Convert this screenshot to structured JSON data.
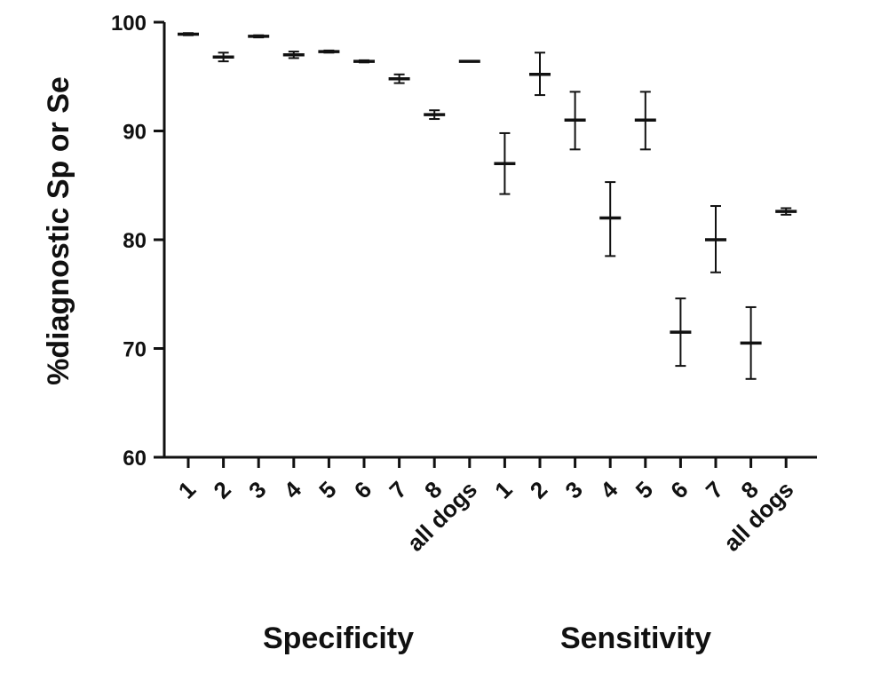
{
  "chart_data": {
    "type": "scatter",
    "title": "",
    "ylabel": "%diagnostic Sp or Se",
    "xlabel": "",
    "ylim": [
      60,
      100
    ],
    "yticks": [
      60,
      70,
      80,
      90,
      100
    ],
    "grid": false,
    "categories": [
      "1",
      "2",
      "3",
      "4",
      "5",
      "6",
      "7",
      "8",
      "all dogs",
      "1",
      "2",
      "3",
      "4",
      "5",
      "6",
      "7",
      "8",
      "all dogs"
    ],
    "groups": [
      {
        "name": "Specificity",
        "start": 0,
        "end": 8
      },
      {
        "name": "Sensitivity",
        "start": 9,
        "end": 17
      }
    ],
    "series": [
      {
        "name": "Specificity",
        "values": [
          98.9,
          96.8,
          98.7,
          97.0,
          97.3,
          96.4,
          94.8,
          91.5,
          96.4
        ],
        "lower": [
          98.8,
          96.4,
          98.6,
          96.7,
          97.2,
          96.3,
          94.4,
          91.1,
          96.4
        ],
        "upper": [
          99.0,
          97.2,
          98.8,
          97.3,
          97.4,
          96.5,
          95.2,
          91.9,
          96.4
        ]
      },
      {
        "name": "Sensitivity",
        "values": [
          87.0,
          95.2,
          91.0,
          82.0,
          91.0,
          71.5,
          80.0,
          70.5,
          82.6
        ],
        "lower": [
          84.2,
          93.3,
          88.3,
          78.5,
          88.3,
          68.4,
          77.0,
          67.2,
          82.3
        ],
        "upper": [
          89.8,
          97.2,
          93.6,
          85.3,
          93.6,
          74.6,
          83.1,
          73.8,
          82.9
        ]
      }
    ]
  }
}
